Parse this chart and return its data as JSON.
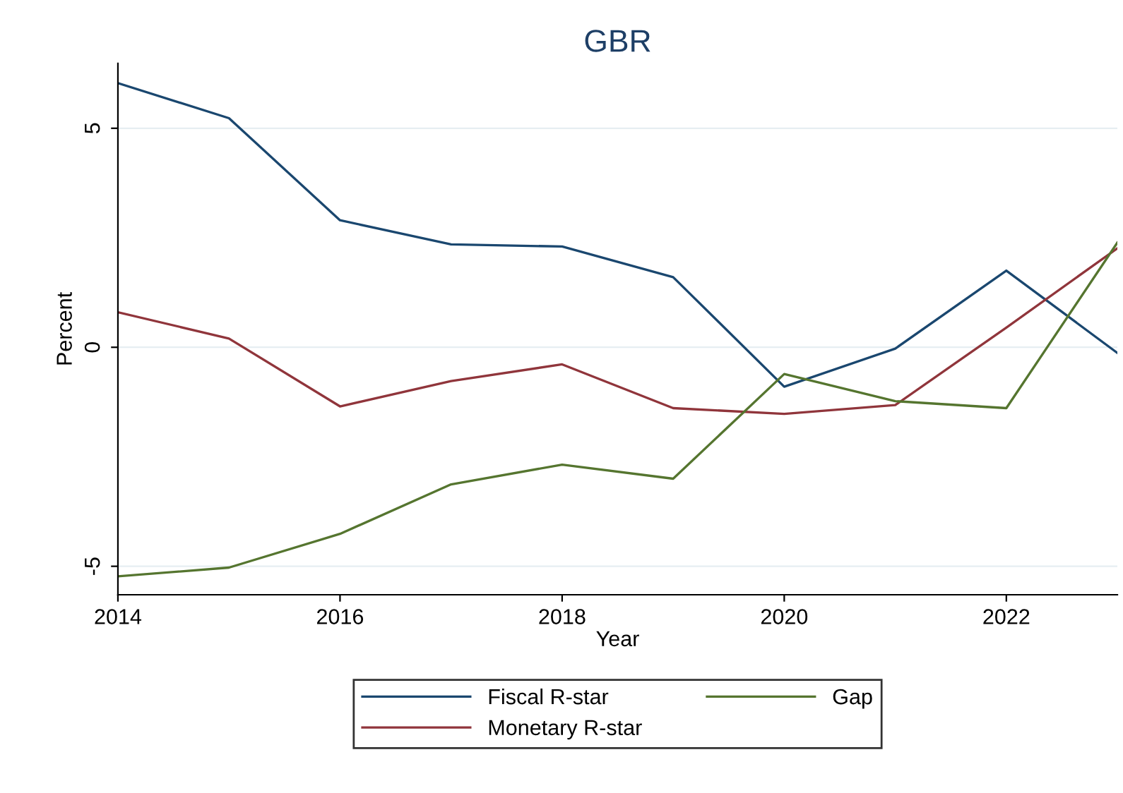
{
  "chart_data": {
    "type": "line",
    "title": "GBR",
    "xlabel": "Year",
    "ylabel": "Percent",
    "x": [
      2014,
      2015,
      2016,
      2017,
      2018,
      2019,
      2020,
      2021,
      2022,
      2023
    ],
    "series": [
      {
        "name": "Fiscal R-star",
        "color": "#1a476f",
        "values": [
          6.03,
          5.23,
          2.9,
          2.35,
          2.3,
          1.6,
          -0.9,
          -0.03,
          1.75,
          -0.13
        ]
      },
      {
        "name": "Monetary R-star",
        "color": "#90353b",
        "values": [
          0.8,
          0.2,
          -1.35,
          -0.77,
          -0.39,
          -1.39,
          -1.52,
          -1.32,
          0.45,
          2.26
        ]
      },
      {
        "name": "Gap",
        "color": "#55752f",
        "values": [
          -5.23,
          -5.03,
          -4.26,
          -3.13,
          -2.68,
          -3.0,
          -0.61,
          -1.23,
          -1.39,
          2.39
        ]
      }
    ],
    "xlim": [
      2014,
      2023
    ],
    "ylim": [
      -5.65,
      6.48
    ],
    "xticks": [
      2014,
      2016,
      2018,
      2020,
      2022
    ],
    "yticks": [
      -5,
      0,
      5
    ],
    "grid": "y",
    "legend": "bottom",
    "marker": "none",
    "line_style": "solid"
  }
}
